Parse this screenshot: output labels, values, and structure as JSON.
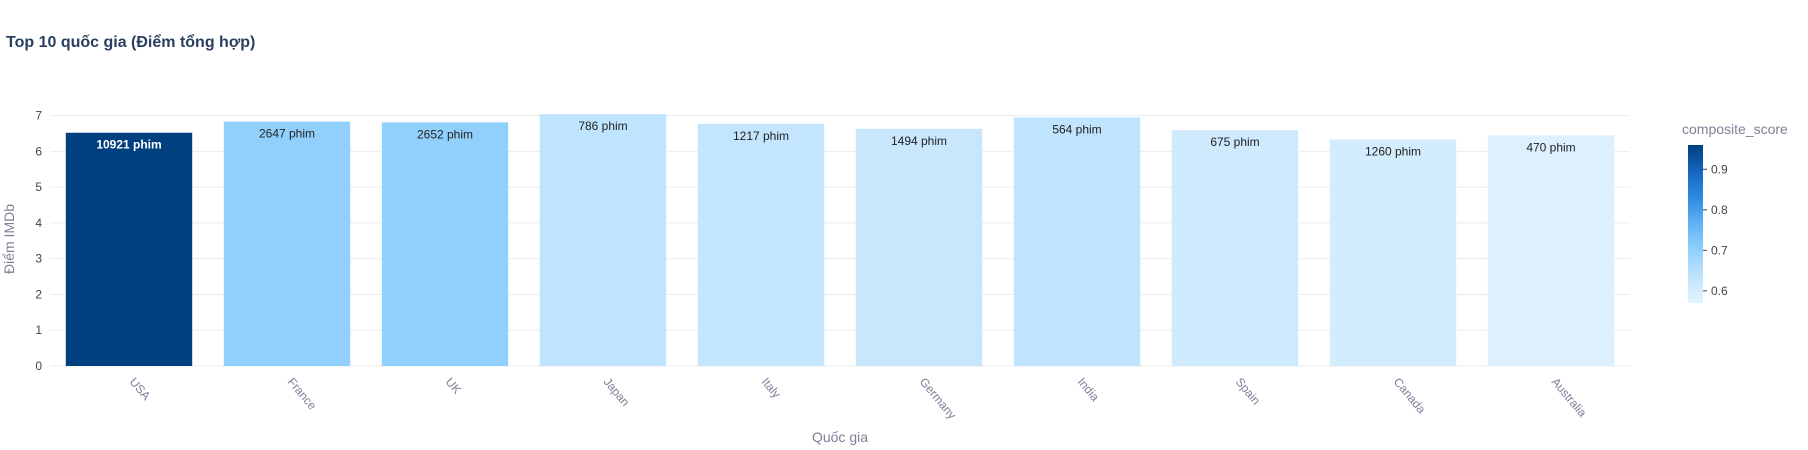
{
  "chart_data": {
    "type": "bar",
    "title": "Top 10 quốc gia (Điểm tổng hợp)",
    "xlabel": "Quốc gia",
    "ylabel": "Điểm IMDb",
    "ylim": [
      0,
      7.1
    ],
    "yticks": [
      0,
      1,
      2,
      3,
      4,
      5,
      6,
      7
    ],
    "grid": true,
    "categories": [
      "USA",
      "France",
      "UK",
      "Japan",
      "Italy",
      "Germany",
      "India",
      "Spain",
      "Canada",
      "Australia"
    ],
    "values": [
      6.52,
      6.83,
      6.81,
      7.04,
      6.77,
      6.63,
      6.95,
      6.59,
      6.33,
      6.45
    ],
    "bar_labels": [
      "10921 phim",
      "2647 phim",
      "2652 phim",
      "786 phim",
      "1217 phim",
      "1494 phim",
      "564 phim",
      "675 phim",
      "1260 phim",
      "470 phim"
    ],
    "colors": [
      "#00407f",
      "#91d0fd",
      "#91d0fd",
      "#bfe4fd",
      "#c3e5fd",
      "#c8e7fd",
      "#c0e4fd",
      "#cfe9fd",
      "#d3ecfe",
      "#dcf0fe"
    ],
    "label_colors": [
      "#ffffff",
      "#222222",
      "#222222",
      "#222222",
      "#222222",
      "#222222",
      "#222222",
      "#222222",
      "#222222",
      "#222222"
    ],
    "colorbar": {
      "title": "composite_score",
      "ticks": [
        "0.9",
        "0.8",
        "0.7",
        "0.6"
      ],
      "tick_values": [
        0.9,
        0.8,
        0.7,
        0.6
      ],
      "range": [
        0.57,
        0.96
      ],
      "colors": [
        "#00407f",
        "#1565c0",
        "#2e8be0",
        "#62b2f5",
        "#91d0fd",
        "#c0e4fd",
        "#e2f3fe"
      ]
    }
  }
}
